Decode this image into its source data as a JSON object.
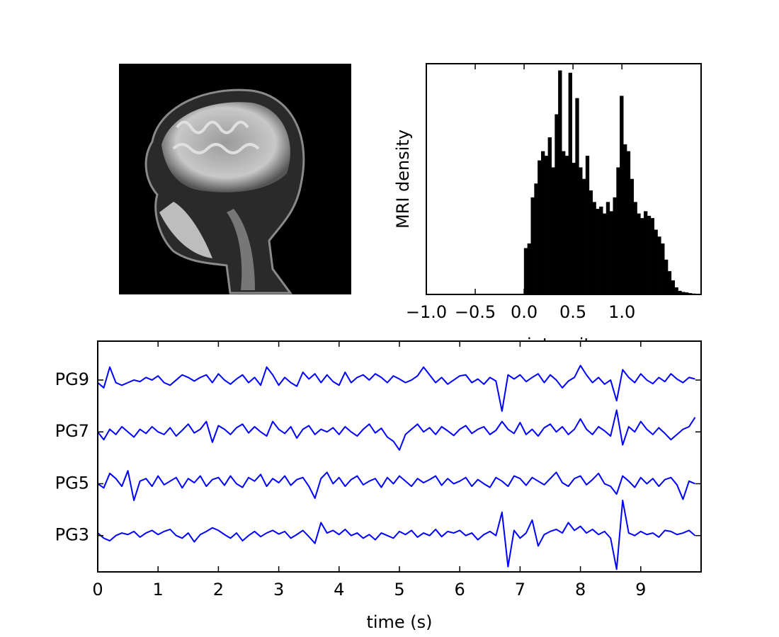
{
  "chart_data": [
    {
      "type": "histogram",
      "xlabel": "intensity",
      "ylabel": "MRI density",
      "color": "#000000",
      "bins": [
        0.0,
        0.035,
        0.07,
        0.105,
        0.14,
        0.175,
        0.21,
        0.245,
        0.28,
        0.315,
        0.35,
        0.385,
        0.42,
        0.455,
        0.49,
        0.525,
        0.56,
        0.595,
        0.63,
        0.665,
        0.7,
        0.735,
        0.77,
        0.805,
        0.84,
        0.875,
        0.91,
        0.945,
        0.98,
        1.015,
        1.05,
        1.085,
        1.12,
        1.155,
        1.19,
        1.225,
        1.26,
        1.295,
        1.33,
        1.365,
        1.4,
        1.435,
        1.47,
        1.505,
        1.54,
        1.575,
        1.61,
        1.645,
        1.68,
        1.715,
        1.75
      ],
      "values": [
        20,
        22,
        42,
        48,
        58,
        62,
        60,
        68,
        55,
        78,
        97,
        62,
        60,
        96,
        57,
        85,
        55,
        50,
        60,
        45,
        40,
        37,
        38,
        35,
        40,
        36,
        42,
        55,
        86,
        65,
        62,
        50,
        40,
        35,
        33,
        36,
        34,
        33,
        28,
        25,
        22,
        15,
        10,
        6,
        3,
        1.5,
        1,
        0.8,
        0.5,
        0.3
      ],
      "xlim": [
        -1.0,
        1.81
      ],
      "ylim": [
        0,
        100
      ],
      "xticks": [
        {
          "value": -1.0,
          "label": "−1.0"
        },
        {
          "value": -0.5,
          "label": "−0.5"
        },
        {
          "value": 0,
          "label": "0.0"
        },
        0.5,
        {
          "value": 1.0,
          "label": "1.0"
        }
      ]
    },
    {
      "type": "line",
      "xlabel": "time (s)",
      "x": [
        0,
        0.1,
        0.2,
        0.3,
        0.4,
        0.5,
        0.6,
        0.7,
        0.8,
        0.9,
        1,
        1.1,
        1.2,
        1.3,
        1.4,
        1.5,
        1.6,
        1.7,
        1.8,
        1.9,
        2,
        2.1,
        2.2,
        2.3,
        2.4,
        2.5,
        2.6,
        2.7,
        2.8,
        2.9,
        3,
        3.1,
        3.2,
        3.3,
        3.4,
        3.5,
        3.6,
        3.7,
        3.8,
        3.9,
        4,
        4.1,
        4.2,
        4.3,
        4.4,
        4.5,
        4.6,
        4.7,
        4.8,
        4.9,
        5,
        5.1,
        5.2,
        5.3,
        5.4,
        5.5,
        5.6,
        5.7,
        5.8,
        5.9,
        6,
        6.1,
        6.2,
        6.3,
        6.4,
        6.5,
        6.6,
        6.7,
        6.8,
        6.9,
        7,
        7.1,
        7.2,
        7.3,
        7.4,
        7.5,
        7.6,
        7.7,
        7.8,
        7.9,
        8,
        8.1,
        8.2,
        8.3,
        8.4,
        8.5,
        8.6,
        8.7,
        8.8,
        8.9,
        9,
        9.1,
        9.2,
        9.3,
        9.4,
        9.5,
        9.6,
        9.7,
        9.8,
        9.9
      ],
      "series": [
        {
          "color": "#0000ff",
          "values": [
            2.95,
            2.85,
            3.25,
            2.95,
            2.9,
            2.95,
            3.0,
            2.97,
            3.05,
            3.0,
            3.08,
            2.95,
            2.9,
            3.0,
            3.1,
            3.05,
            2.98,
            3.05,
            3.1,
            2.95,
            3.12,
            3.0,
            2.92,
            3.02,
            3.1,
            2.95,
            3.05,
            2.9,
            3.25,
            3.1,
            2.9,
            3.05,
            2.95,
            2.88,
            3.15,
            3.02,
            3.12,
            2.95,
            3.1,
            2.97,
            2.9,
            3.15,
            2.95,
            3.05,
            3.1,
            3.0,
            3.12,
            3.05,
            2.95,
            3.08,
            3.02,
            2.95,
            3.0,
            3.08,
            3.25,
            3.1,
            2.95,
            3.05,
            2.92,
            3.0,
            3.08,
            3.1,
            2.95,
            3.02,
            2.92,
            3.05,
            2.98,
            2.4,
            3.1,
            3.02,
            3.1,
            2.97,
            3.05,
            3.12,
            2.95,
            3.1,
            3.0,
            2.85,
            2.98,
            3.05,
            3.28,
            3.1,
            2.95,
            3.05,
            2.92,
            3.0,
            2.6,
            3.2,
            3.05,
            2.95,
            3.12,
            3.0,
            2.93,
            3.05,
            2.97,
            3.12,
            3.02,
            2.95,
            3.05,
            3.02
          ]
        },
        {
          "color": "#0000ff",
          "values": [
            2.0,
            1.85,
            2.05,
            1.95,
            2.1,
            2.0,
            1.9,
            2.05,
            1.97,
            2.1,
            2.0,
            1.95,
            2.08,
            1.92,
            2.03,
            2.15,
            1.98,
            2.05,
            2.2,
            1.8,
            2.12,
            2.05,
            1.95,
            2.08,
            2.15,
            1.98,
            2.1,
            2.0,
            1.92,
            2.2,
            2.05,
            1.97,
            2.1,
            1.88,
            2.05,
            2.12,
            1.95,
            2.05,
            2.0,
            2.08,
            1.95,
            2.1,
            2.0,
            1.92,
            2.05,
            2.15,
            1.98,
            2.07,
            1.9,
            1.82,
            1.65,
            1.95,
            2.05,
            2.15,
            2.0,
            2.08,
            1.95,
            2.1,
            2.02,
            1.93,
            2.05,
            2.12,
            1.97,
            2.05,
            2.1,
            1.95,
            2.03,
            2.2,
            2.05,
            1.97,
            2.18,
            1.95,
            2.05,
            1.92,
            2.08,
            2.15,
            2.0,
            2.1,
            1.95,
            2.05,
            2.25,
            2.05,
            1.95,
            2.1,
            2.02,
            1.92,
            2.42,
            1.75,
            2.1,
            2.0,
            2.2,
            2.05,
            1.95,
            2.08,
            1.97,
            1.85,
            1.95,
            2.05,
            2.1,
            2.28
          ]
        },
        {
          "color": "#0000ff",
          "values": [
            1.0,
            0.92,
            1.2,
            1.1,
            0.95,
            1.25,
            0.68,
            1.05,
            1.1,
            0.95,
            1.15,
            0.98,
            1.05,
            1.12,
            0.92,
            1.1,
            1.02,
            1.15,
            0.95,
            1.08,
            1.12,
            0.97,
            1.15,
            1.0,
            0.93,
            1.12,
            1.05,
            1.18,
            0.95,
            1.1,
            1.02,
            1.15,
            0.97,
            1.08,
            1.12,
            0.95,
            0.72,
            1.1,
            1.22,
            1.0,
            1.12,
            0.95,
            1.08,
            1.15,
            0.98,
            1.05,
            1.1,
            0.93,
            1.12,
            1.0,
            1.15,
            1.05,
            0.95,
            1.1,
            1.02,
            1.08,
            1.15,
            0.97,
            1.1,
            1.0,
            1.05,
            1.12,
            0.95,
            1.08,
            1.0,
            0.93,
            1.12,
            1.05,
            0.95,
            1.15,
            1.1,
            0.97,
            1.12,
            1.05,
            0.98,
            1.1,
            1.22,
            1.02,
            0.95,
            1.1,
            1.15,
            0.98,
            1.08,
            1.2,
            1.0,
            0.95,
            0.8,
            1.15,
            1.05,
            0.93,
            1.12,
            1.0,
            1.1,
            0.95,
            1.08,
            1.12,
            0.98,
            0.7,
            1.05,
            1.0
          ]
        },
        {
          "color": "#0000ff",
          "values": [
            0.05,
            -0.05,
            -0.1,
            0.0,
            0.05,
            0.02,
            0.08,
            -0.03,
            0.05,
            0.1,
            0.02,
            0.08,
            0.12,
            0.0,
            -0.05,
            0.05,
            -0.12,
            0.02,
            0.08,
            0.15,
            0.1,
            0.02,
            -0.05,
            0.05,
            -0.1,
            0.0,
            0.08,
            -0.02,
            0.05,
            0.1,
            0.03,
            0.08,
            -0.05,
            0.02,
            0.1,
            -0.02,
            -0.15,
            0.25,
            0.05,
            0.1,
            0.02,
            0.12,
            0.0,
            0.05,
            -0.05,
            0.02,
            -0.08,
            0.05,
            0.0,
            -0.05,
            0.08,
            0.02,
            0.1,
            -0.03,
            0.05,
            0.0,
            0.12,
            -0.02,
            0.08,
            0.05,
            0.1,
            0.0,
            0.05,
            -0.08,
            0.02,
            0.08,
            0.0,
            0.45,
            -0.6,
            0.1,
            -0.05,
            0.05,
            0.3,
            -0.2,
            0.02,
            0.08,
            0.12,
            0.05,
            0.25,
            0.1,
            0.18,
            0.05,
            0.12,
            0.02,
            0.08,
            -0.05,
            -0.65,
            0.68,
            0.05,
            0.0,
            0.08,
            0.02,
            0.05,
            -0.03,
            0.1,
            0.08,
            0.02,
            0.05,
            0.1,
            0.0
          ]
        }
      ],
      "xlim": [
        0,
        10
      ],
      "ylim": [
        -0.7,
        3.75
      ],
      "xticks": [
        0,
        1,
        2,
        3,
        4,
        5,
        6,
        7,
        8,
        9
      ],
      "yticks": [
        {
          "value": 0,
          "label": "PG3"
        },
        {
          "value": 1,
          "label": "PG5"
        },
        {
          "value": 2,
          "label": "PG7"
        },
        {
          "value": 3,
          "label": "PG9"
        }
      ]
    }
  ]
}
